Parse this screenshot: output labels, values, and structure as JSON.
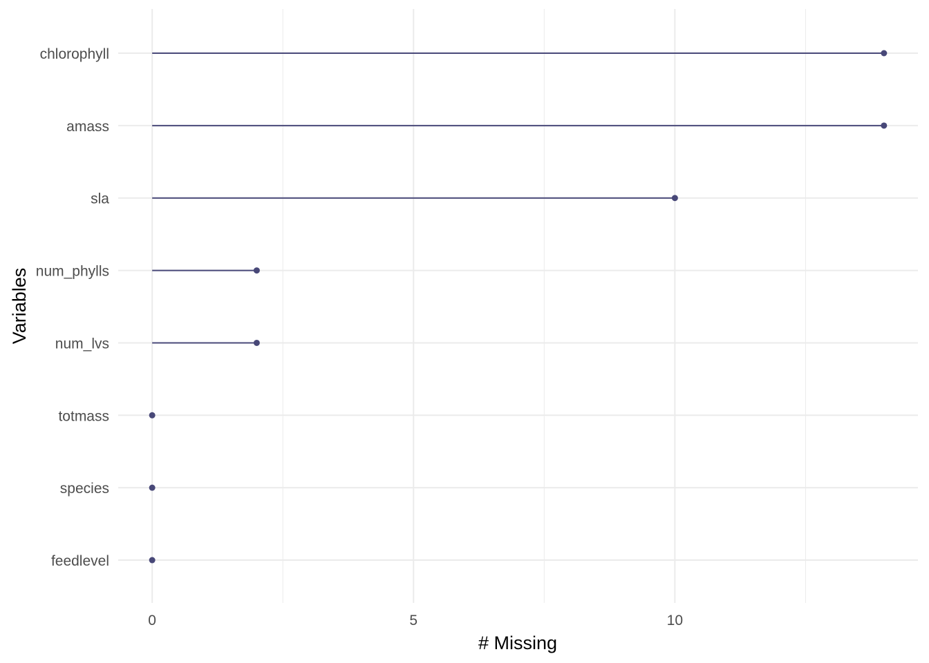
{
  "chart_data": {
    "type": "lollipop",
    "xlabel": "# Missing",
    "ylabel": "Variables",
    "xlim": [
      -0.65,
      14.65
    ],
    "xticks": [
      0,
      5,
      10
    ],
    "grid": true,
    "color": "#484878",
    "grid_color": "#ebebeb",
    "categories": [
      "chlorophyll",
      "amass",
      "sla",
      "num_phylls",
      "num_lvs",
      "totmass",
      "species",
      "feedlevel"
    ],
    "values": [
      14,
      14,
      10,
      2,
      2,
      0,
      0,
      0
    ]
  }
}
